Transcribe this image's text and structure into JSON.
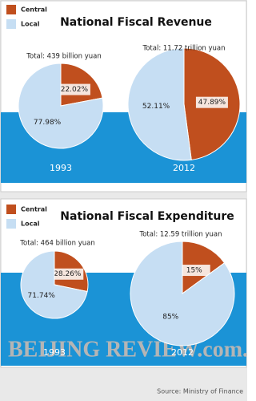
{
  "chart_data": [
    {
      "type": "pie",
      "title": "National Fiscal Revenue",
      "series": [
        {
          "name": "Central",
          "color": "#c04f1e"
        },
        {
          "name": "Local",
          "color": "#c6def3"
        }
      ],
      "pies": [
        {
          "category": "1993",
          "total": "Total: 439 billion yuan",
          "values": [
            22.02,
            77.98
          ],
          "value_labels": [
            "22.02%",
            "77.98%"
          ]
        },
        {
          "category": "2012",
          "total": "Total: 11.72 trillion yuan",
          "values": [
            47.89,
            52.11
          ],
          "value_labels": [
            "47.89%",
            "52.11%"
          ]
        }
      ]
    },
    {
      "type": "pie",
      "title": "National Fiscal Expenditure",
      "series": [
        {
          "name": "Central",
          "color": "#c04f1e"
        },
        {
          "name": "Local",
          "color": "#c6def3"
        }
      ],
      "pies": [
        {
          "category": "1993",
          "total": "Total: 464 billion yuan",
          "values": [
            28.26,
            71.74
          ],
          "value_labels": [
            "28.26%",
            "71.74%"
          ]
        },
        {
          "category": "2012",
          "total": "Total: 12.59 trillion yuan",
          "values": [
            15,
            85
          ],
          "value_labels": [
            "15%",
            "85%"
          ]
        }
      ]
    }
  ],
  "footer": {
    "brand": "BEIJING REVIEW.com.cn",
    "source": "Source: Ministry of Finance"
  }
}
